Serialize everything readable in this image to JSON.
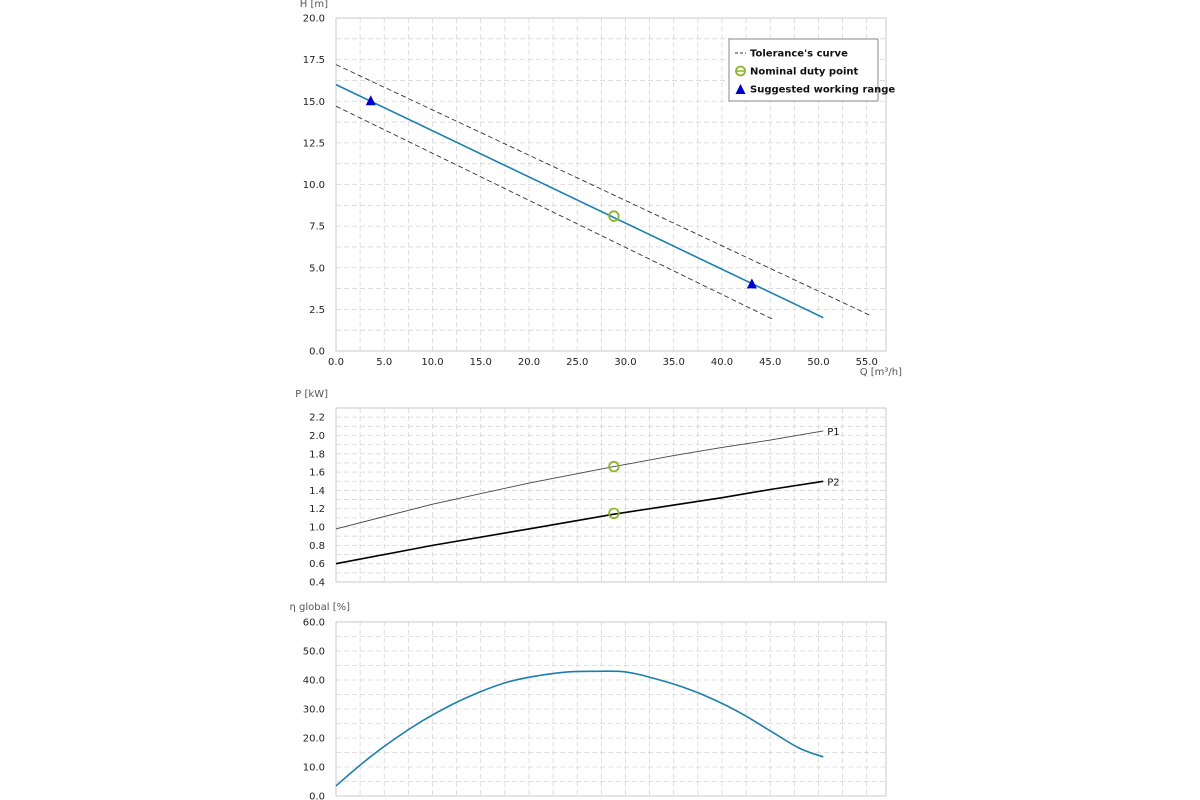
{
  "chart_data": [
    {
      "type": "line",
      "ylabel": "H [m]",
      "xlabel": "Q [m³/h]",
      "xlim": [
        0,
        57
      ],
      "ylim": [
        0,
        20
      ],
      "xticks": [
        "0.0",
        "5.0",
        "10.0",
        "15.0",
        "20.0",
        "25.0",
        "30.0",
        "35.0",
        "40.0",
        "45.0",
        "50.0",
        "55.0"
      ],
      "yticks": [
        "0.0",
        "2.5",
        "5.0",
        "7.5",
        "10.0",
        "12.5",
        "15.0",
        "17.5",
        "20.0"
      ],
      "grid": true,
      "legend_position": "top-right",
      "legend": [
        {
          "symbol": "dashed-line",
          "label": "Tolerance's curve"
        },
        {
          "symbol": "open-circle",
          "label": "Nominal duty point"
        },
        {
          "symbol": "triangle",
          "label": "Suggested working range"
        }
      ],
      "series": [
        {
          "role": "main",
          "x": [
            0,
            50.5
          ],
          "y": [
            16.0,
            2.0
          ]
        },
        {
          "role": "tolerance-upper",
          "x": [
            0,
            55.5
          ],
          "y": [
            17.2,
            2.1
          ]
        },
        {
          "role": "tolerance-lower",
          "x": [
            0,
            45.3
          ],
          "y": [
            14.7,
            1.9
          ]
        }
      ],
      "duty_point": {
        "x": 28.8,
        "y": 8.1
      },
      "working_range": [
        {
          "x": 3.6,
          "y": 15.0
        },
        {
          "x": 43.1,
          "y": 4.0
        }
      ],
      "colors": {
        "main": "#1a7fad",
        "tolerance": "#333333",
        "duty": "#8db52b",
        "triangle": "#0000cc"
      }
    },
    {
      "type": "line",
      "ylabel": "P [kW]",
      "xlim": [
        0,
        57
      ],
      "ylim": [
        0.4,
        2.3
      ],
      "yticks": [
        "0.4",
        "0.6",
        "0.8",
        "1.0",
        "1.2",
        "1.4",
        "1.6",
        "1.8",
        "2.0",
        "2.2"
      ],
      "grid": true,
      "series": [
        {
          "name": "P1",
          "x": [
            0,
            10,
            20,
            28.8,
            35,
            40,
            45,
            50.5
          ],
          "y": [
            0.98,
            1.25,
            1.48,
            1.66,
            1.78,
            1.87,
            1.95,
            2.05
          ]
        },
        {
          "name": "P2",
          "x": [
            0,
            10,
            20,
            28.8,
            35,
            40,
            45,
            50.5
          ],
          "y": [
            0.6,
            0.8,
            0.98,
            1.14,
            1.24,
            1.32,
            1.41,
            1.5
          ]
        }
      ],
      "duty_points": [
        {
          "x": 28.8,
          "y": 1.66
        },
        {
          "x": 28.8,
          "y": 1.15
        }
      ],
      "colors": {
        "P1": "#444444",
        "P2": "#000000",
        "duty": "#8db52b"
      }
    },
    {
      "type": "line",
      "ylabel": "η global [%]",
      "xlim": [
        0,
        57
      ],
      "ylim": [
        0,
        60
      ],
      "yticks": [
        "0.0",
        "10.0",
        "20.0",
        "30.0",
        "40.0",
        "50.0",
        "60.0"
      ],
      "grid": true,
      "series": [
        {
          "name": "efficiency",
          "x": [
            0,
            3,
            6,
            9,
            12,
            15,
            18,
            21,
            24,
            27,
            30,
            33,
            36,
            39,
            42,
            45,
            48,
            50.5
          ],
          "y": [
            3.5,
            12,
            19.5,
            26,
            31.5,
            36,
            39.5,
            41.5,
            42.8,
            43.0,
            42.8,
            40.5,
            37.5,
            33.5,
            28.5,
            22.5,
            16.5,
            13.5
          ]
        }
      ],
      "colors": {
        "efficiency": "#1a7fad"
      }
    }
  ]
}
